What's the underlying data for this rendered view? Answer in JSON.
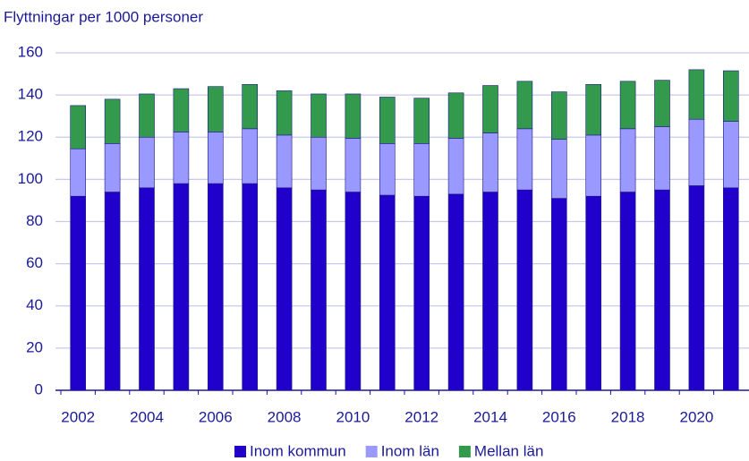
{
  "chart_data": {
    "type": "stacked_bar",
    "title": "Flyttningar per 1000 personer",
    "categories": [
      "2002",
      null,
      "2004",
      null,
      "2006",
      null,
      "2008",
      null,
      "2010",
      null,
      "2012",
      null,
      "2014",
      null,
      "2016",
      null,
      "2018",
      null,
      "2020",
      null
    ],
    "series": [
      {
        "name": "Inom kommun",
        "color": "#2200cc",
        "values": [
          92,
          94,
          96,
          98,
          98,
          98,
          96,
          95,
          94,
          92.5,
          92,
          93,
          94,
          95,
          91,
          92,
          94,
          95,
          97,
          96
        ]
      },
      {
        "name": "Inom län",
        "color": "#9999ff",
        "values": [
          22.5,
          23,
          24,
          24.5,
          24.5,
          26,
          25,
          25,
          25.5,
          24.5,
          25,
          26.5,
          28,
          29,
          28,
          29,
          30,
          30,
          31.5,
          31.5
        ]
      },
      {
        "name": "Mellan län",
        "color": "#33994d",
        "values": [
          20.5,
          21,
          20.5,
          20.5,
          21.5,
          21,
          21,
          20.5,
          21,
          22,
          21.5,
          21.5,
          22.5,
          22.5,
          22.5,
          24,
          22.5,
          22,
          23.5,
          24
        ]
      }
    ],
    "ylim": [
      0,
      160
    ],
    "yticks": [
      0,
      20,
      40,
      60,
      80,
      100,
      120,
      140,
      160
    ],
    "grid": true
  }
}
